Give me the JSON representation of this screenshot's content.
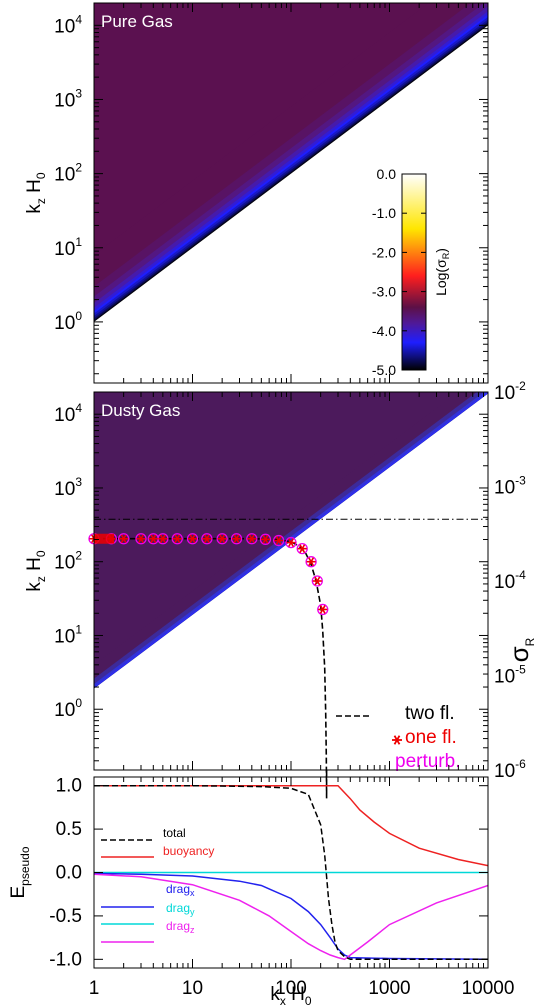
{
  "chart_data": [
    {
      "type": "heatmap",
      "title": "Pure Gas",
      "xscale": "log",
      "yscale": "log",
      "xlim": [
        1,
        10000
      ],
      "ylim": [
        0.15,
        20000
      ],
      "ylabel": {
        "main": "k",
        "sub1": "z",
        "mid": " H",
        "sub2": "0"
      },
      "y_ticks": [
        {
          "v": 1,
          "b": "10",
          "e": "0"
        },
        {
          "v": 10,
          "b": "10",
          "e": "1"
        },
        {
          "v": 100,
          "b": "10",
          "e": "2"
        },
        {
          "v": 1000,
          "b": "10",
          "e": "3"
        },
        {
          "v": 10000,
          "b": "10",
          "e": "4"
        }
      ],
      "field_description": "log growth rate; unstable (colored) region where kz > kx; peak (blue) near kz ~ 1.4 kx",
      "unstable_boundary_ratio": 1.0,
      "ridge_ratio": 1.4,
      "colorbar": {
        "label": {
          "main": "Log(σ",
          "sub": "R",
          "end": ")"
        },
        "range": [
          -5.0,
          0.0
        ],
        "ticks": [
          "0.0",
          "-1.0",
          "-2.0",
          "-3.0",
          "-4.0",
          "-5.0"
        ],
        "colors": [
          "#000000",
          "#1a1aff",
          "#4a1060",
          "#ff2020",
          "#ffee00",
          "#ffffff"
        ]
      }
    },
    {
      "type": "heatmap",
      "title": "Dusty Gas",
      "xscale": "log",
      "yscale": "log",
      "xlim": [
        1,
        10000
      ],
      "ylim": [
        0.15,
        20000
      ],
      "ylabel": {
        "main": "k",
        "sub1": "z",
        "mid": " H",
        "sub2": "0"
      },
      "y_ticks": [
        {
          "v": 1,
          "b": "10",
          "e": "0"
        },
        {
          "v": 10,
          "b": "10",
          "e": "1"
        },
        {
          "v": 100,
          "b": "10",
          "e": "2"
        },
        {
          "v": 1000,
          "b": "10",
          "e": "3"
        },
        {
          "v": 10000,
          "b": "10",
          "e": "4"
        }
      ],
      "unstable_boundary_ratio": 1.9,
      "right_axis": {
        "label": {
          "main": "σ",
          "sub": "R"
        },
        "scale": "log",
        "range": [
          1e-06,
          0.01
        ],
        "ticks": [
          {
            "b": "10",
            "e": "-2"
          },
          {
            "b": "10",
            "e": "-3"
          },
          {
            "b": "10",
            "e": "-4"
          },
          {
            "b": "10",
            "e": "-5"
          },
          {
            "b": "10",
            "e": "-6"
          }
        ]
      },
      "max_growth_line": {
        "sigma": 0.00045
      },
      "series": [
        {
          "name": "two fl.",
          "style": "dashed",
          "color": "#000000",
          "x": [
            1,
            2,
            5,
            10,
            20,
            40,
            60,
            80,
            100,
            120,
            140,
            160,
            180,
            200,
            210,
            220,
            225,
            228,
            230
          ],
          "sigma": [
            0.00028,
            0.00028,
            0.00028,
            0.00028,
            0.00028,
            0.00028,
            0.000276,
            0.00027,
            0.00026,
            0.000235,
            0.0002,
            0.00015,
            0.0001,
            5.5e-05,
            3e-05,
            1.2e-05,
            4e-06,
            1.4e-06,
            5e-07
          ]
        },
        {
          "name": "one fl.",
          "style": "star",
          "color": "#ee0000",
          "x": [
            1,
            1.5,
            2,
            3,
            4,
            5,
            7,
            10,
            14,
            20,
            28,
            40,
            55,
            75,
            100,
            130,
            160,
            185,
            210
          ],
          "sigma": [
            0.00028,
            0.00028,
            0.00028,
            0.00028,
            0.00028,
            0.00028,
            0.00028,
            0.00028,
            0.00028,
            0.00028,
            0.00028,
            0.00028,
            0.000276,
            0.000268,
            0.000255,
            0.00022,
            0.00016,
            0.0001,
            5e-05
          ]
        },
        {
          "name": "perturb.",
          "style": "circle",
          "color": "#ee00ee",
          "x": [
            1,
            1.5,
            2,
            3,
            4,
            5,
            7,
            10,
            14,
            20,
            28,
            40,
            55,
            75,
            100,
            130,
            160,
            185,
            210
          ],
          "sigma": [
            0.00028,
            0.00028,
            0.00028,
            0.00028,
            0.00028,
            0.00028,
            0.00028,
            0.00028,
            0.00028,
            0.00028,
            0.00028,
            0.00028,
            0.000276,
            0.000268,
            0.000255,
            0.00022,
            0.00016,
            0.0001,
            5e-05
          ]
        }
      ]
    },
    {
      "type": "line",
      "xscale": "log",
      "xlim": [
        1,
        10000
      ],
      "ylim": [
        -1.1,
        1.1
      ],
      "xlabel": {
        "main": "k",
        "sub1": "x",
        "mid": " H",
        "sub2": "0"
      },
      "ylabel": {
        "main": "E",
        "sub": "pseudo"
      },
      "x_ticks": [
        "1",
        "10",
        "100",
        "1000",
        "10000"
      ],
      "y_ticks": [
        "1.0",
        "0.5",
        "0.0",
        "-0.5",
        "-1.0"
      ],
      "series": [
        {
          "name": "total",
          "name_sub": "",
          "style": "dashed",
          "color": "#000000",
          "x": [
            1,
            10,
            50,
            100,
            150,
            200,
            220,
            240,
            260,
            280,
            300,
            350,
            400,
            500,
            1000,
            10000
          ],
          "y": [
            1.0,
            1.0,
            0.99,
            0.97,
            0.9,
            0.55,
            0.2,
            -0.3,
            -0.6,
            -0.8,
            -0.9,
            -0.97,
            -1.0,
            -1.0,
            -1.0,
            -1.0
          ]
        },
        {
          "name": "buoyancy",
          "name_sub": "",
          "style": "solid",
          "color": "#ee2222",
          "x": [
            1,
            10,
            100,
            200,
            300,
            400,
            500,
            700,
            1000,
            2000,
            5000,
            10000
          ],
          "y": [
            1.0,
            1.0,
            1.0,
            1.0,
            1.0,
            0.85,
            0.72,
            0.58,
            0.45,
            0.28,
            0.15,
            0.08
          ]
        },
        {
          "name": "drag",
          "name_sub": "x",
          "style": "solid",
          "color": "#2222ee",
          "x": [
            1,
            3,
            10,
            30,
            50,
            100,
            150,
            200,
            250,
            300,
            350,
            400,
            1000,
            10000
          ],
          "y": [
            -0.01,
            -0.02,
            -0.04,
            -0.1,
            -0.15,
            -0.3,
            -0.45,
            -0.6,
            -0.75,
            -0.88,
            -0.95,
            -0.98,
            -0.99,
            -1.0
          ]
        },
        {
          "name": "drag",
          "name_sub": "y",
          "style": "solid",
          "color": "#00d8d8",
          "x": [
            1,
            10,
            100,
            1000,
            10000
          ],
          "y": [
            0.0,
            0.0,
            0.0,
            0.0,
            0.0
          ]
        },
        {
          "name": "drag",
          "name_sub": "z",
          "style": "solid",
          "color": "#ee22ee",
          "x": [
            1,
            3,
            10,
            30,
            60,
            100,
            150,
            200,
            250,
            300,
            350,
            400,
            600,
            1000,
            3000,
            10000
          ],
          "y": [
            -0.02,
            -0.05,
            -0.14,
            -0.32,
            -0.5,
            -0.68,
            -0.82,
            -0.9,
            -0.95,
            -0.98,
            -1.0,
            -0.95,
            -0.8,
            -0.6,
            -0.35,
            -0.15
          ]
        }
      ]
    }
  ]
}
